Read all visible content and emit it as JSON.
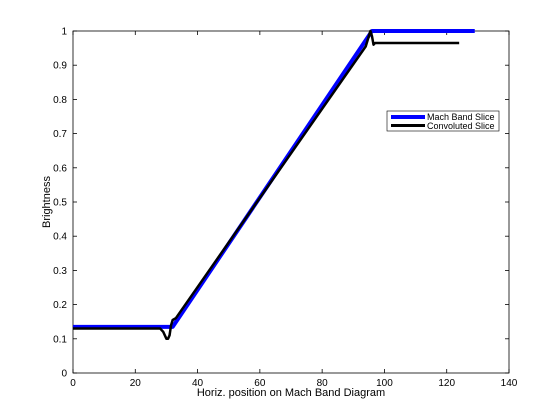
{
  "chart_data": {
    "type": "line",
    "xlabel": "Horiz. position on Mach Band Diagram",
    "ylabel": "Brightness",
    "xlim": [
      0,
      140
    ],
    "ylim": [
      0,
      1
    ],
    "xticks": [
      0,
      20,
      40,
      60,
      80,
      100,
      120,
      140
    ],
    "yticks": [
      0,
      0.1,
      0.2,
      0.3,
      0.4,
      0.5,
      0.6,
      0.7,
      0.8,
      0.9,
      1
    ],
    "grid": false,
    "legend_position": "right",
    "series": [
      {
        "name": "Mach Band Slice",
        "color": "#0000ff",
        "x": [
          0,
          32,
          96,
          129
        ],
        "y": [
          0.135,
          0.135,
          1.0,
          1.0
        ]
      },
      {
        "name": "Convoluted Slice",
        "color": "#000000",
        "x": [
          0,
          28,
          29,
          30,
          30.5,
          31,
          31.5,
          32,
          33,
          94,
          95,
          95.5,
          96,
          96.5,
          97,
          98,
          124
        ],
        "y": [
          0.13,
          0.13,
          0.12,
          0.1,
          0.1,
          0.11,
          0.14,
          0.155,
          0.16,
          0.955,
          0.985,
          1.0,
          0.985,
          0.96,
          0.965,
          0.965,
          0.965
        ]
      }
    ]
  }
}
